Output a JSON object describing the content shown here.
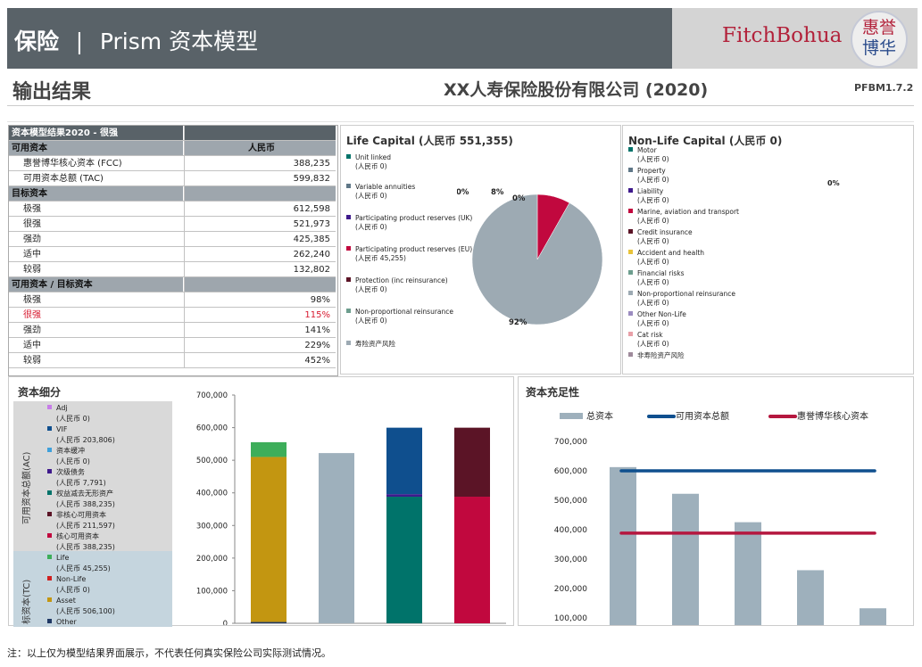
{
  "header": {
    "title_main": "保险",
    "title_sep": "|",
    "title_sub": "Prism 资本模型",
    "logo_text": "FitchBohua",
    "logo_seal_a": "惠誉",
    "logo_seal_b": "博华"
  },
  "page": {
    "section_title": "输出结果",
    "company_title": "XX人寿保险股份有限公司 (2020)",
    "version": "PFBM1.7.2"
  },
  "results_table": {
    "title": "资本模型结果2020 - 很强",
    "rows": [
      {
        "label": "可用资本",
        "value": "人民币",
        "kind": "sect"
      },
      {
        "label": "惠誉博华核心资本 (FCC)",
        "value": "388,235",
        "kind": "item"
      },
      {
        "label": "可用资本总额 (TAC)",
        "value": "599,832",
        "kind": "item"
      },
      {
        "label": "目标资本",
        "value": "",
        "kind": "sect"
      },
      {
        "label": "极强",
        "value": "612,598",
        "kind": "item"
      },
      {
        "label": "很强",
        "value": "521,973",
        "kind": "item"
      },
      {
        "label": "强劲",
        "value": "425,385",
        "kind": "item"
      },
      {
        "label": "适中",
        "value": "262,240",
        "kind": "item"
      },
      {
        "label": "较弱",
        "value": "132,802",
        "kind": "item"
      },
      {
        "label": "可用资本 / 目标资本",
        "value": "",
        "kind": "sect"
      },
      {
        "label": "极强",
        "value": "98%",
        "kind": "item"
      },
      {
        "label": "很强",
        "value": "115%",
        "kind": "warn"
      },
      {
        "label": "强劲",
        "value": "141%",
        "kind": "item"
      },
      {
        "label": "适中",
        "value": "229%",
        "kind": "item"
      },
      {
        "label": "较弱",
        "value": "452%",
        "kind": "item"
      }
    ]
  },
  "colors": {
    "header_bg": "#596268",
    "accent_red": "#b2213a",
    "bar_grey": "#9eb0bc",
    "tac_line": "#0f4f8e",
    "fcc_line": "#b5173f"
  },
  "chart_data": [
    {
      "id": "life-capital",
      "type": "pie",
      "title": "Life Capital (人民币 551,355)",
      "slices": [
        {
          "name": "Unit linked",
          "amount": "(人民币 0)",
          "value": 0,
          "color": "#00736a"
        },
        {
          "name": "Variable annuities",
          "amount": "(人民币 0)",
          "value": 0,
          "color": "#5f7787"
        },
        {
          "name": "Participating product reserves (UK)",
          "amount": "(人民币 0)",
          "value": 0,
          "color": "#3f1a8c"
        },
        {
          "name": "Participating product reserves (EU)",
          "amount": "(人民币 45,255)",
          "value": 45255,
          "color": "#c1083e"
        },
        {
          "name": "Protection (inc reinsurance)",
          "amount": "(人民币 0)",
          "value": 0,
          "color": "#5b1426"
        },
        {
          "name": "Non-proportional reinsurance",
          "amount": "(人民币 0)",
          "value": 0,
          "color": "#6d9e8e"
        },
        {
          "name": "寿险资产风险",
          "amount": "",
          "value": 506100,
          "color": "#9daab3"
        }
      ],
      "data_labels": [
        {
          "text": "0%"
        },
        {
          "text": "8%"
        },
        {
          "text": "0%"
        },
        {
          "text": "92%"
        }
      ]
    },
    {
      "id": "nonlife-capital",
      "type": "pie",
      "title": "Non-Life Capital (人民币 0)",
      "slices": [
        {
          "name": "Motor",
          "amount": "(人民币 0)",
          "value": 0,
          "color": "#00736a"
        },
        {
          "name": "Property",
          "amount": "(人民币 0)",
          "value": 0,
          "color": "#5f7787"
        },
        {
          "name": "Liability",
          "amount": "(人民币 0)",
          "value": 0,
          "color": "#3f1a8c"
        },
        {
          "name": "Marine, aviation and transport",
          "amount": "(人民币 0)",
          "value": 0,
          "color": "#c1083e"
        },
        {
          "name": "Credit insurance",
          "amount": "(人民币 0)",
          "value": 0,
          "color": "#5b1426"
        },
        {
          "name": "Accident and health",
          "amount": "(人民币 0)",
          "value": 0,
          "color": "#e8c33a"
        },
        {
          "name": "Financial risks",
          "amount": "(人民币 0)",
          "value": 0,
          "color": "#6d9e8e"
        },
        {
          "name": "Non-proportional reinsurance",
          "amount": "(人民币 0)",
          "value": 0,
          "color": "#9daab3"
        },
        {
          "name": "Other Non-Life",
          "amount": "(人民币 0)",
          "value": 0,
          "color": "#9b8cc0"
        },
        {
          "name": "Cat risk",
          "amount": "(人民币 0)",
          "value": 0,
          "color": "#e8a0a8"
        },
        {
          "name": "非寿险资产风险",
          "amount": "",
          "value": 0,
          "color": "#9e8a9b"
        }
      ],
      "data_labels": [
        {
          "text": "0%"
        }
      ]
    },
    {
      "id": "capital-breakdown",
      "type": "bar",
      "stacked": true,
      "title": "资本细分",
      "group_labels": {
        "ac": "可用资本总额(AC)",
        "tc": "标资本(TC)"
      },
      "ylim": [
        0,
        700000
      ],
      "yticks": [
        "0",
        "100,000",
        "200,000",
        "300,000",
        "400,000",
        "500,000",
        "600,000",
        "700,000"
      ],
      "legend": [
        {
          "name": "Adj",
          "amount": "(人民币 0)",
          "color": "#c77de8"
        },
        {
          "name": "VIF",
          "amount": "(人民币 203,806)",
          "color": "#0f4f8e"
        },
        {
          "name": "资本缓冲",
          "amount": "(人民币 0)",
          "color": "#3fa0db"
        },
        {
          "name": "次级债务",
          "amount": "(人民币 7,791)",
          "color": "#3f1a8c"
        },
        {
          "name": "权益减去无形资产",
          "amount": "(人民币 388,235)",
          "color": "#00736a"
        },
        {
          "name": "非核心可用资本",
          "amount": "(人民币 211,597)",
          "color": "#5b1426"
        },
        {
          "name": "核心可用资本",
          "amount": "(人民币 388,235)",
          "color": "#c1083e"
        },
        {
          "name": "Life",
          "amount": "(人民币 45,255)",
          "color": "#3dae5a"
        },
        {
          "name": "Non-Life",
          "amount": "(人民币 0)",
          "color": "#d02020"
        },
        {
          "name": "Asset",
          "amount": "(人民币 506,100)",
          "color": "#c39611"
        },
        {
          "name": "Other",
          "amount": "",
          "color": "#1f3864"
        }
      ],
      "bars": [
        {
          "segments": [
            {
              "value": 4000,
              "color": "#1f3864"
            },
            {
              "value": 506100,
              "color": "#c39611"
            },
            {
              "value": 45255,
              "color": "#3dae5a"
            }
          ]
        },
        {
          "segments": [
            {
              "value": 521973,
              "color": "#9eb0bc"
            }
          ]
        },
        {
          "segments": [
            {
              "value": 388235,
              "color": "#00736a"
            },
            {
              "value": 7791,
              "color": "#3f1a8c"
            },
            {
              "value": 203806,
              "color": "#0f4f8e"
            }
          ]
        },
        {
          "segments": [
            {
              "value": 388235,
              "color": "#c1083e"
            },
            {
              "value": 211597,
              "color": "#5b1426"
            }
          ]
        }
      ]
    },
    {
      "id": "capital-adequacy",
      "type": "bar",
      "title": "资本充足性",
      "legend": [
        {
          "name": "总资本",
          "kind": "bar",
          "color": "#9eb0bc"
        },
        {
          "name": "可用资本总额",
          "kind": "line",
          "color": "#0f4f8e"
        },
        {
          "name": "惠誉博华核心资本",
          "kind": "line",
          "color": "#b5173f"
        }
      ],
      "ylim": [
        100000,
        700000
      ],
      "yticks": [
        "100,000",
        "200,000",
        "300,000",
        "400,000",
        "500,000",
        "600,000",
        "700,000"
      ],
      "values": [
        612598,
        521973,
        425385,
        262240,
        132802
      ],
      "lines": [
        {
          "name": "可用资本总额",
          "value": 599832,
          "color": "#0f4f8e"
        },
        {
          "name": "惠誉博华核心资本",
          "value": 388235,
          "color": "#b5173f"
        }
      ]
    }
  ],
  "footnote": "注：以上仅为模型结果界面展示，不代表任何真实保险公司实际测试情况。"
}
